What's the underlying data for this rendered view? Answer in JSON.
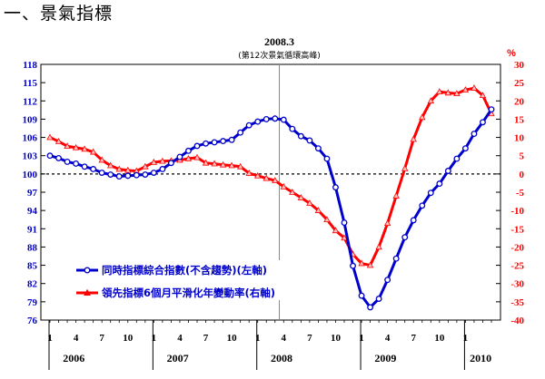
{
  "page": {
    "heading": "一、景氣指標"
  },
  "chart_data": {
    "type": "line",
    "annotation": {
      "title": "2008.3",
      "subtitle": "(第12次景氣循環高峰)",
      "x_index": 26.5
    },
    "y_left": {
      "range": [
        76,
        118
      ],
      "ticks": [
        76,
        79,
        82,
        85,
        88,
        91,
        94,
        97,
        100,
        103,
        106,
        109,
        112,
        115,
        118
      ],
      "color": "#0000cc"
    },
    "y_right": {
      "unit": "%",
      "range": [
        -40,
        30
      ],
      "ticks": [
        -40,
        -35,
        -30,
        -25,
        -20,
        -15,
        -10,
        -5,
        0,
        5,
        10,
        15,
        20,
        25,
        30
      ],
      "color": "#ff0000"
    },
    "reference_line": {
      "axis": "left",
      "value": 100,
      "style": "dashed"
    },
    "x_ticks": [
      {
        "index": 0,
        "label": "1"
      },
      {
        "index": 3,
        "label": "4"
      },
      {
        "index": 6,
        "label": "7"
      },
      {
        "index": 9,
        "label": "10"
      },
      {
        "index": 12,
        "label": "1"
      },
      {
        "index": 15,
        "label": "4"
      },
      {
        "index": 18,
        "label": "7"
      },
      {
        "index": 21,
        "label": "10"
      },
      {
        "index": 24,
        "label": "1"
      },
      {
        "index": 27,
        "label": "4"
      },
      {
        "index": 30,
        "label": "7"
      },
      {
        "index": 33,
        "label": "10"
      },
      {
        "index": 36,
        "label": "1"
      },
      {
        "index": 39,
        "label": "4"
      },
      {
        "index": 42,
        "label": "7"
      },
      {
        "index": 45,
        "label": "10"
      },
      {
        "index": 48,
        "label": "1"
      }
    ],
    "years": [
      {
        "label": "2006",
        "index": 1.5
      },
      {
        "label": "2007",
        "index": 13.5
      },
      {
        "label": "2008",
        "index": 25.5
      },
      {
        "label": "2009",
        "index": 37.5
      },
      {
        "label": "2010",
        "index": 48.5
      }
    ],
    "series": [
      {
        "name": "同時指標綜合指數(不含趨勢)(左軸)",
        "axis": "left",
        "color": "#0000cc",
        "marker": "circle",
        "values": [
          103.0,
          102.6,
          102.0,
          101.7,
          101.2,
          100.8,
          100.2,
          99.9,
          99.6,
          99.7,
          99.8,
          99.9,
          100.2,
          100.8,
          101.8,
          102.8,
          103.8,
          104.6,
          105.0,
          105.2,
          105.4,
          105.6,
          106.8,
          108.0,
          108.6,
          109.0,
          109.1,
          108.9,
          107.4,
          106.2,
          105.5,
          104.2,
          102.5,
          97.8,
          92.0,
          84.9,
          80.0,
          78.1,
          79.5,
          82.6,
          86.1,
          89.6,
          92.4,
          94.8,
          96.9,
          98.4,
          100.5,
          102.5,
          104.2,
          106.6,
          108.5,
          110.6
        ]
      },
      {
        "name": "領先指標6個月平滑化年變動率(右軸)",
        "axis": "right",
        "color": "#ff0000",
        "marker": "triangle",
        "values": [
          10.0,
          8.9,
          7.6,
          7.2,
          6.8,
          6.0,
          3.8,
          2.3,
          1.3,
          1.0,
          0.8,
          2.0,
          3.2,
          3.5,
          3.6,
          3.8,
          4.2,
          4.5,
          3.0,
          2.8,
          2.5,
          2.3,
          2.0,
          0.2,
          -0.5,
          -1.2,
          -1.8,
          -3.5,
          -5.0,
          -6.5,
          -8.0,
          -10.0,
          -12.5,
          -15.5,
          -17.5,
          -22.0,
          -24.5,
          -25.0,
          -20.0,
          -13.5,
          -6.0,
          1.5,
          9.5,
          15.5,
          20.0,
          22.5,
          22.2,
          22.0,
          23.0,
          23.5,
          21.5,
          16.5
        ]
      }
    ]
  }
}
